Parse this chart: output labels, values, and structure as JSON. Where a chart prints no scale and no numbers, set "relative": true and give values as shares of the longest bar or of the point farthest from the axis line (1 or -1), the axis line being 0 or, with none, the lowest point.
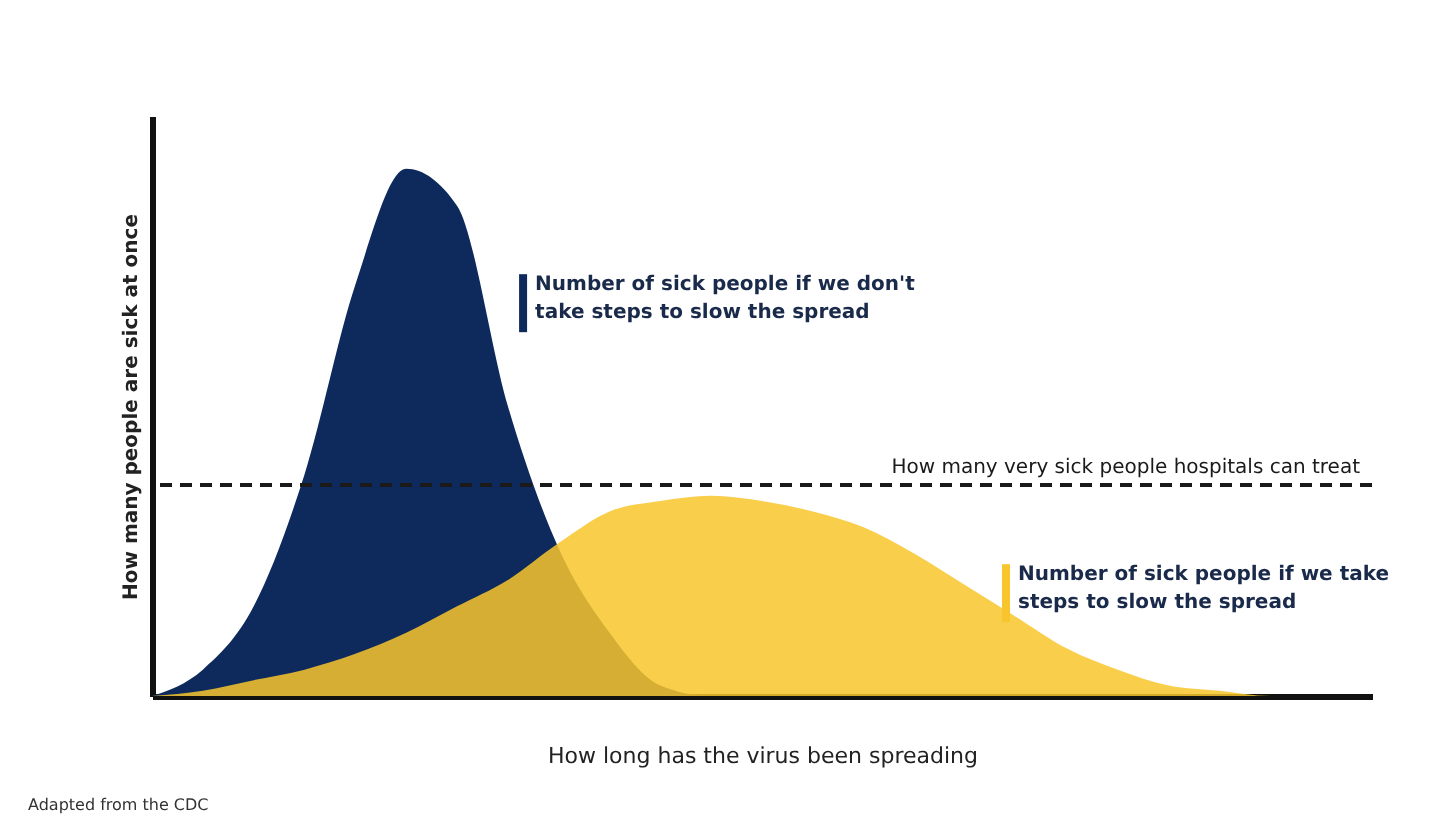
{
  "chart_data": {
    "type": "area",
    "relative": true,
    "xlabel": "How long has the virus been spreading",
    "ylabel": "How many people are sick at once",
    "categories": [
      null,
      null,
      null,
      null,
      null,
      null,
      null,
      null,
      null,
      null,
      null,
      null,
      null,
      null,
      null,
      null,
      null,
      null,
      null,
      null,
      null,
      null,
      null,
      null,
      null
    ],
    "series": [
      {
        "name": "Number of sick people if we don't take steps to slow the spread",
        "color": "#0e2a5c",
        "values": [
          0,
          0.05,
          0.17,
          0.42,
          0.78,
          1,
          0.93,
          0.55,
          0.28,
          0.12,
          0.02,
          0,
          0,
          0,
          0,
          0,
          0,
          0,
          0,
          0,
          0,
          0,
          0,
          0,
          0
        ]
      },
      {
        "name": "Number of sick people if we take steps to slow the spread",
        "color": "#f8c62c",
        "values": [
          0,
          0.01,
          0.03,
          0.05,
          0.08,
          0.12,
          0.17,
          0.22,
          0.29,
          0.35,
          0.37,
          0.38,
          0.37,
          0.35,
          0.32,
          0.27,
          0.21,
          0.15,
          0.09,
          0.05,
          0.02,
          0.01,
          0,
          0,
          0
        ]
      }
    ],
    "ref_lines": [
      {
        "axis": "y",
        "value": 0.4,
        "label": "How many very sick people hospitals can treat",
        "color": "#1a1a1a",
        "line_style": "dashed"
      }
    ],
    "annotations": [
      "Adapted from the CDC"
    ]
  }
}
